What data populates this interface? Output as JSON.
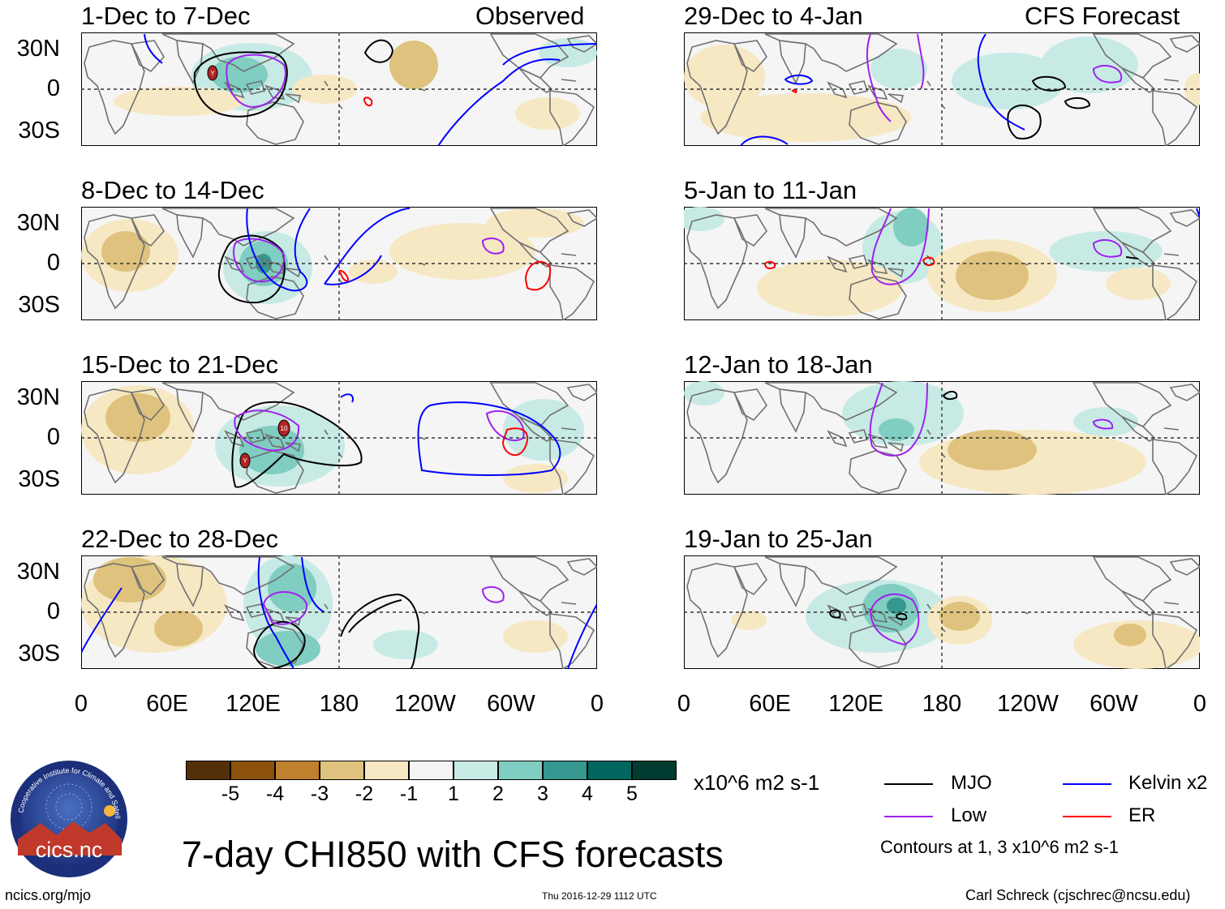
{
  "panels_left_header": "Observed",
  "panels_right_header": "CFS Forecast",
  "panels": [
    {
      "id": "p1",
      "title": "1-Dec to 7-Dec"
    },
    {
      "id": "p2",
      "title": "8-Dec to 14-Dec"
    },
    {
      "id": "p3",
      "title": "15-Dec to 21-Dec"
    },
    {
      "id": "p4",
      "title": "22-Dec to 28-Dec"
    },
    {
      "id": "p5",
      "title": "29-Dec to 4-Jan"
    },
    {
      "id": "p6",
      "title": "5-Jan to 11-Jan"
    },
    {
      "id": "p7",
      "title": "12-Jan to 18-Jan"
    },
    {
      "id": "p8",
      "title": "19-Jan to 25-Jan"
    }
  ],
  "lat_labels": [
    "30N",
    "0",
    "30S"
  ],
  "lon_labels": [
    "0",
    "60E",
    "120E",
    "180",
    "120W",
    "60W",
    "0"
  ],
  "colorbar": {
    "unit": "x10^6 m2 s-1",
    "ticks": [
      "-5",
      "-4",
      "-3",
      "-2",
      "-1",
      "1",
      "2",
      "3",
      "4",
      "5"
    ],
    "colors": [
      "#54300a",
      "#8c510a",
      "#bf812d",
      "#dfc27d",
      "#f6e8c3",
      "#f5f5f5",
      "#c7eae5",
      "#80cdc1",
      "#35978f",
      "#01665e",
      "#003c30"
    ]
  },
  "legend": {
    "mjo": "MJO",
    "low": "Low",
    "kelvin": "Kelvin x2",
    "er": "ER",
    "note": "Contours at 1, 3 x10^6 m2 s-1",
    "colors": {
      "mjo": "#000000",
      "low": "#a020f0",
      "kelvin": "#0000ff",
      "er": "#ff0000"
    }
  },
  "title": "7-day CHI850 with CFS forecasts",
  "logo_text": "cics.nc",
  "logo_ring_text": "Cooperative Institute for Climate and Satellites",
  "footer": {
    "left": "ncics.org/mjo",
    "center": "Thu 2016-12-29 1112 UTC",
    "right": "Carl Schreck (cjschrec@ncsu.edu)"
  },
  "storm_markers": [
    "Y",
    "10",
    "Y"
  ]
}
